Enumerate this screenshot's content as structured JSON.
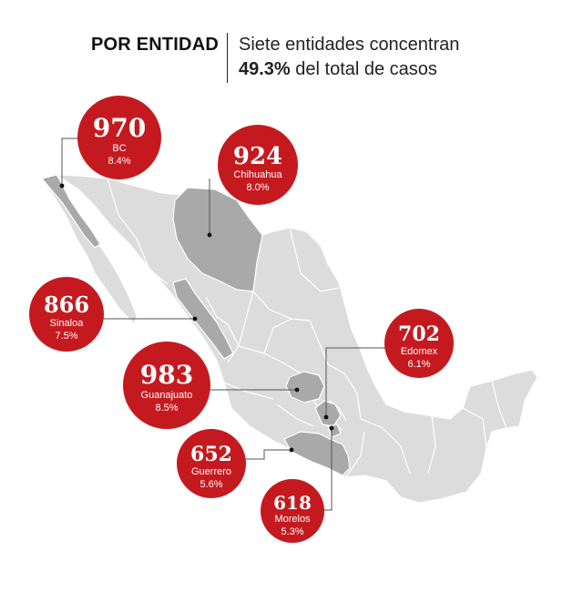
{
  "header": {
    "label": "POR ENTIDAD",
    "line1": "Siete entidades concentran",
    "line2_bold": "49.3%",
    "line2_rest": " del total de casos"
  },
  "colors": {
    "bubble": "#c41a1f",
    "highlight": "#a9a9a9",
    "base": "#dcdcdc",
    "border": "#ffffff",
    "leader": "#555555"
  },
  "states": [
    {
      "key": "bc",
      "name": "BC",
      "cases": "970",
      "pct": "8.4%"
    },
    {
      "key": "chihuahua",
      "name": "Chihuahua",
      "cases": "924",
      "pct": "8.0%"
    },
    {
      "key": "sinaloa",
      "name": "Sinaloa",
      "cases": "866",
      "pct": "7.5%"
    },
    {
      "key": "edomex",
      "name": "Edomex",
      "cases": "702",
      "pct": "6.1%"
    },
    {
      "key": "guanajuato",
      "name": "Guanajuato",
      "cases": "983",
      "pct": "8.5%"
    },
    {
      "key": "guerrero",
      "name": "Guerrero",
      "cases": "652",
      "pct": "5.6%"
    },
    {
      "key": "morelos",
      "name": "Morelos",
      "cases": "618",
      "pct": "5.3%"
    }
  ]
}
